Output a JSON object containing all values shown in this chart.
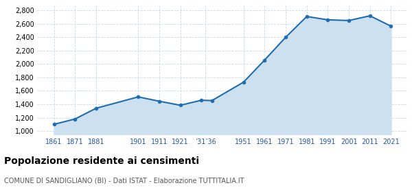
{
  "years": [
    1861,
    1871,
    1881,
    1901,
    1911,
    1921,
    1931,
    1936,
    1951,
    1961,
    1971,
    1981,
    1991,
    2001,
    2011,
    2021
  ],
  "population": [
    1100,
    1180,
    1340,
    1510,
    1445,
    1385,
    1460,
    1455,
    1730,
    2060,
    2400,
    2710,
    2660,
    2650,
    2720,
    2565
  ],
  "line_color": "#1c6db0",
  "fill_color": "#cce0f0",
  "marker_color": "#1c6db0",
  "bg_color": "#ffffff",
  "grid_color": "#c8d8e8",
  "ylim": [
    950,
    2870
  ],
  "yticks": [
    1000,
    1200,
    1400,
    1600,
    1800,
    2000,
    2200,
    2400,
    2600,
    2800
  ],
  "xlim_left": 1853,
  "xlim_right": 2029,
  "x_tick_positions": [
    1861,
    1871,
    1881,
    1901,
    1911,
    1921,
    1933,
    1951,
    1961,
    1971,
    1981,
    1991,
    2001,
    2011,
    2021
  ],
  "x_tick_labels": [
    "1861",
    "1871",
    "1881",
    "1901",
    "1911",
    "1921",
    "’31’36",
    "1951",
    "1961",
    "1971",
    "1981",
    "1991",
    "2001",
    "2011",
    "2021"
  ],
  "title": "Popolazione residente ai censimenti",
  "subtitle": "COMUNE DI SANDIGLIANO (BI) - Dati ISTAT - Elaborazione TUTTITALIA.IT",
  "title_fontsize": 10,
  "subtitle_fontsize": 7,
  "tick_color": "#2255aa",
  "tick_fontsize": 7,
  "ytick_fontsize": 7
}
